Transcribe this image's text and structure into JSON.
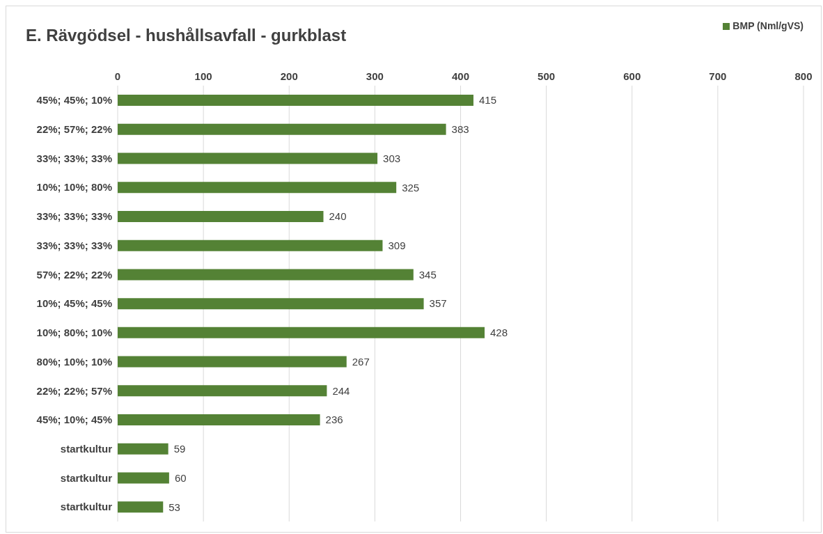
{
  "chart_data": {
    "type": "bar",
    "orientation": "horizontal",
    "title": "E.  Rävgödsel - hushållsavfall - gurkblast",
    "categories": [
      "45%; 45%; 10%",
      "22%; 57%; 22%",
      "33%; 33%; 33%",
      "10%; 10%; 80%",
      "33%; 33%; 33%",
      "33%; 33%; 33%",
      "57%; 22%; 22%",
      "10%; 45%; 45%",
      "10%; 80%; 10%",
      "80%; 10%; 10%",
      "22%; 22%; 57%",
      "45%; 10%; 45%",
      "startkultur",
      "startkultur",
      "startkultur"
    ],
    "series": [
      {
        "name": "BMP (Nml/gVS)",
        "color": "#548235",
        "values": [
          415,
          383,
          303,
          325,
          240,
          309,
          345,
          357,
          428,
          267,
          244,
          236,
          59,
          60,
          53
        ]
      }
    ],
    "xlim": [
      0,
      800
    ],
    "xticks": [
      0,
      100,
      200,
      300,
      400,
      500,
      600,
      700,
      800
    ],
    "grid": "x",
    "legend": "top right",
    "data_labels": true
  }
}
